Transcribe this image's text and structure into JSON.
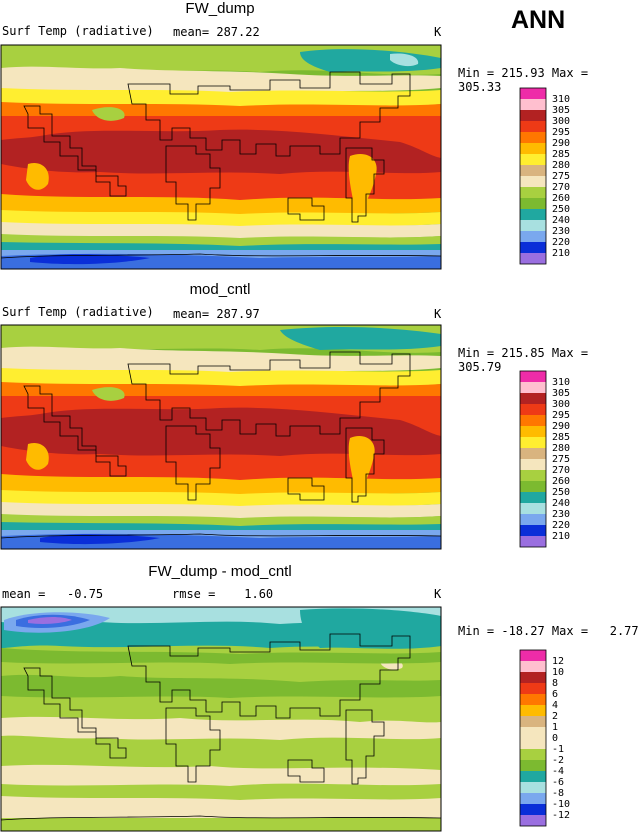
{
  "season": "ANN",
  "panels": [
    {
      "title": "FW_dump",
      "variable": "Surf Temp (radiative)",
      "stat_text": "mean= 287.22",
      "units": "K",
      "minmax": "Min = 215.93 Max = 305.33",
      "levels": [
        "310",
        "305",
        "300",
        "295",
        "290",
        "285",
        "280",
        "275",
        "270",
        "260",
        "250",
        "240",
        "230",
        "220",
        "210"
      ]
    },
    {
      "title": "mod_cntl",
      "variable": "Surf Temp (radiative)",
      "stat_text": "mean= 287.97",
      "units": "K",
      "minmax": "Min = 215.85 Max = 305.79",
      "levels": [
        "310",
        "305",
        "300",
        "295",
        "290",
        "285",
        "280",
        "275",
        "270",
        "260",
        "250",
        "240",
        "230",
        "220",
        "210"
      ]
    },
    {
      "title": "FW_dump - mod_cntl",
      "variable": "mean =   -0.75",
      "stat_text": "rmse =    1.60",
      "units": "K",
      "minmax": "Min = -18.27 Max =   2.77",
      "levels": [
        "12",
        "10",
        "8",
        "6",
        "4",
        "2",
        "1",
        "0",
        "-1",
        "-2",
        "-4",
        "-6",
        "-8",
        "-10",
        "-12"
      ]
    }
  ],
  "colors": {
    "scale": [
      "#ee2ca8",
      "#ffbfcf",
      "#b22222",
      "#ee3a16",
      "#ff7700",
      "#ffbb00",
      "#ffee30",
      "#d9b47f",
      "#f5e6be",
      "#a8d040",
      "#7cba30",
      "#20a8a0",
      "#a8e0e0",
      "#7aa8ee",
      "#3a6ee0",
      "#0a2ed8",
      "#9a6fe0"
    ]
  }
}
